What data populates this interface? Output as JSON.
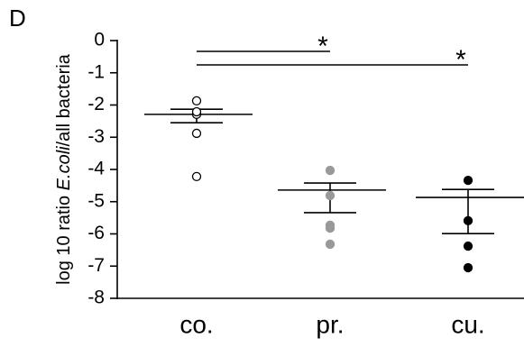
{
  "chart_data": {
    "type": "dot",
    "panel": "D",
    "ylabel": [
      "log 10 ratio ",
      "E.coli",
      "/all bacteria"
    ],
    "categories": [
      "co.",
      "pr.",
      "cu."
    ],
    "points": [
      [
        -1.87,
        -2.29,
        -2.21,
        -2.88,
        -4.22
      ],
      [
        -4.03,
        -4.81,
        -5.73,
        -5.82,
        -6.32
      ],
      [
        -4.34,
        -5.59,
        -6.38,
        -7.05
      ]
    ],
    "mean": [
      -2.29,
      -4.64,
      -4.87
    ],
    "upper": [
      -2.13,
      -4.42,
      -4.62
    ],
    "lower": [
      -2.55,
      -5.34,
      -5.99
    ],
    "fill_colors": [
      "#ffffff",
      "#999999",
      "#000000"
    ],
    "edge_colors": [
      "#000000",
      "#999999",
      "#000000"
    ],
    "ylim": [
      -8,
      0
    ],
    "yticks": [
      0,
      -1,
      -2,
      -3,
      -4,
      -5,
      -6,
      -7,
      -8
    ],
    "annotations": [
      {
        "text": "*",
        "from": "co.",
        "to": "pr."
      },
      {
        "text": "*",
        "from": "co.",
        "to": "cu."
      }
    ]
  }
}
